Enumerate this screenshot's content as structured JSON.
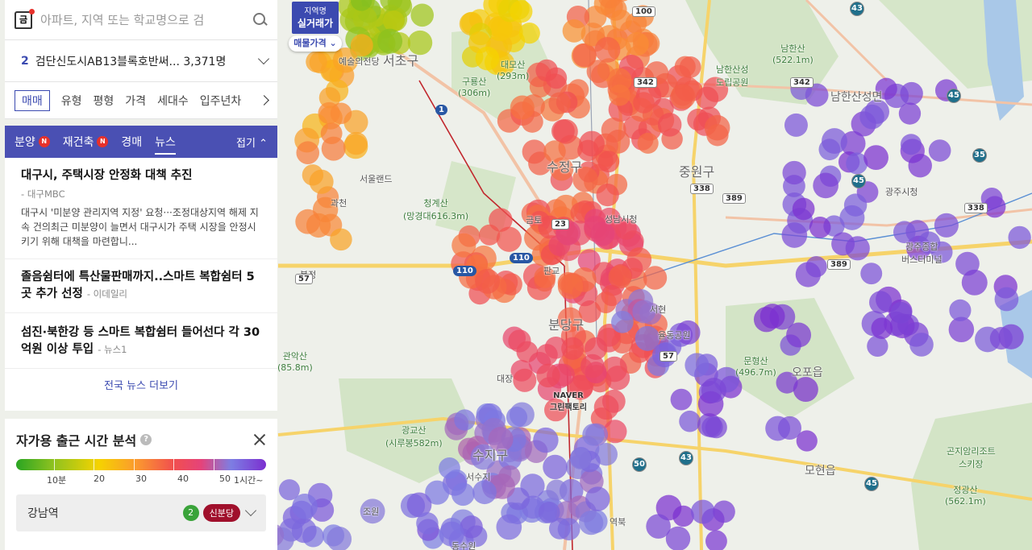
{
  "search": {
    "placeholder": "아파트, 지역 또는 학교명으로 검"
  },
  "complex": {
    "count": "2",
    "name": "검단신도시AB13블록호반써...",
    "households": "3,371명"
  },
  "filters": [
    {
      "label": "매매",
      "active": true
    },
    {
      "label": "유형"
    },
    {
      "label": "평형"
    },
    {
      "label": "가격"
    },
    {
      "label": "세대수"
    },
    {
      "label": "입주년차"
    }
  ],
  "tabs": {
    "presale": "분양",
    "rebuild": "재건축",
    "auction": "경매",
    "news": "뉴스",
    "fold": "접기",
    "badge": "N"
  },
  "news": [
    {
      "title": "대구시, 주택시장 안정화 대책 추진",
      "source": "대구MBC",
      "summary": "대구시 '미분양 관리지역 지정' 요청···조정대상지역 해제 지속 건의최근 미분양이 늘면서 대구시가 주택 시장을 안정시키기 위해 대책을 마련합니..."
    },
    {
      "title": "졸음쉼터에 특산물판매까지..스마트 복합쉼터 5곳 추가 선정",
      "source": "이데일리"
    },
    {
      "title": "섬진·북한강 등 스마트 복합쉼터 들어선다 각 30억원 이상 투입",
      "source": "뉴스1"
    }
  ],
  "more_news": "전국 뉴스 더보기",
  "commute": {
    "title": "자가용 출근 시간 분석",
    "ticks": [
      "10분",
      "20",
      "30",
      "40",
      "50",
      "1시간~"
    ],
    "destination": "강남역",
    "dest_count": "2",
    "line": "신분당"
  },
  "region_toggle": {
    "top": "지역명",
    "main": "실거래가"
  },
  "price_button": "매물가격",
  "map_labels": {
    "seocho": "서초구",
    "sujeong": "수정구",
    "jungwon": "중원구",
    "bundang": "분당구",
    "suji": "수지구",
    "namhansanseong": "남한산성면",
    "opo": "오포읍",
    "mohyeon": "모현읍",
    "artcenter": "예술의전당",
    "seoulland": "서울랜드",
    "gwacheon": "과천",
    "geumto": "금토",
    "pangyo": "판교",
    "seohyeon": "서현",
    "yuldong": "율동공원",
    "daejang": "대장",
    "naver": "NAVER\n그린팩토리",
    "suseo": "서수지",
    "jowon": "조원",
    "dongsu": "동수원",
    "cheonggye": "청계산\n(망경대616.3m)",
    "guryong": "구룡산\n(306m)",
    "daemo": "대모산\n(293m)",
    "namhan": "남한산\n(522.1m)",
    "namhanpark": "남한산성\n도립공원",
    "munhyeong": "문형산\n(496.7m)",
    "gwanggyo": "광교산\n(시루봉582m)",
    "jeonggwang": "정광산\n(562.1m)",
    "gonjiam": "곤지암리조트\n스키장",
    "gwangju": "광주시청",
    "gwangjuterm": "광주종합\n버스터미널",
    "gwanak": "관악산\n(85.8m)",
    "seongnam": "성남시청",
    "bokjeong": "복정",
    "yeoksam": "역북"
  }
}
